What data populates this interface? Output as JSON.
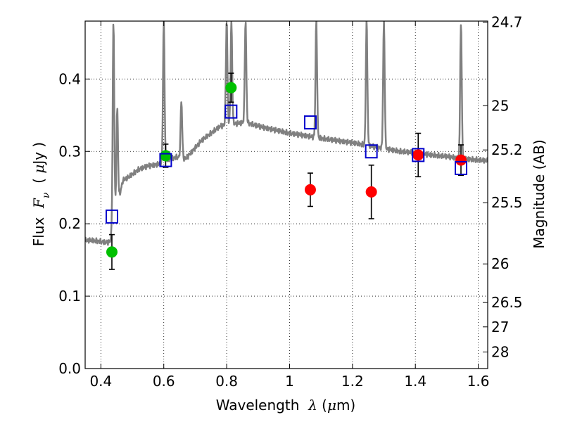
{
  "chart_data": {
    "type": "scatter",
    "title": "",
    "xlabel": {
      "prefix": "Wavelength  ",
      "symbol": "λ",
      "suffix": " (",
      "unit_symbol": "μ",
      "unit_rest": "m)"
    },
    "ylabel": {
      "prefix": "Flux  ",
      "symbol": "F",
      "subscript": "ν",
      "suffix": "  ( ",
      "unit_symbol": "μ",
      "unit_rest": "Jy )"
    },
    "y2label": "Magnitude (AB)",
    "xlim": [
      0.35,
      1.63
    ],
    "ylim": [
      0,
      0.48
    ],
    "grid": true,
    "x_ticks": [
      {
        "value": 0.4,
        "label": "0.4"
      },
      {
        "value": 0.6,
        "label": "0.6"
      },
      {
        "value": 0.8,
        "label": "0.8"
      },
      {
        "value": 1.0,
        "label": "1"
      },
      {
        "value": 1.2,
        "label": "1.2"
      },
      {
        "value": 1.4,
        "label": "1.4"
      },
      {
        "value": 1.6,
        "label": "1.6"
      }
    ],
    "y_ticks": [
      {
        "value": 0.0,
        "label": "0.0"
      },
      {
        "value": 0.1,
        "label": "0.1"
      },
      {
        "value": 0.2,
        "label": "0.2"
      },
      {
        "value": 0.3,
        "label": "0.3"
      },
      {
        "value": 0.4,
        "label": "0.4"
      }
    ],
    "y2_ticks": [
      {
        "value": 24.7,
        "label": "24.7"
      },
      {
        "value": 25.0,
        "label": "25"
      },
      {
        "value": 25.2,
        "label": "25.2"
      },
      {
        "value": 25.5,
        "label": "25.5"
      },
      {
        "value": 26.0,
        "label": "26"
      },
      {
        "value": 26.5,
        "label": "26.5"
      },
      {
        "value": 27.0,
        "label": "27"
      },
      {
        "value": 28.0,
        "label": "28"
      }
    ],
    "series": [
      {
        "marker": "circle",
        "color": "#00c000",
        "points": [
          {
            "x": 0.435,
            "y": 0.161,
            "err": 0.024
          },
          {
            "x": 0.606,
            "y": 0.294,
            "err": 0.016
          },
          {
            "x": 0.814,
            "y": 0.388,
            "err": 0.02
          }
        ]
      },
      {
        "marker": "circle",
        "color": "#ff0000",
        "points": [
          {
            "x": 1.066,
            "y": 0.247,
            "err": 0.023
          },
          {
            "x": 1.26,
            "y": 0.244,
            "err": 0.037
          },
          {
            "x": 1.409,
            "y": 0.295,
            "err": 0.03
          },
          {
            "x": 1.545,
            "y": 0.288,
            "err": 0.021
          }
        ]
      },
      {
        "marker": "square-open",
        "color": "#0000cc",
        "points": [
          {
            "x": 0.435,
            "y": 0.21
          },
          {
            "x": 0.606,
            "y": 0.288
          },
          {
            "x": 0.814,
            "y": 0.355
          },
          {
            "x": 1.066,
            "y": 0.34
          },
          {
            "x": 1.26,
            "y": 0.3
          },
          {
            "x": 1.409,
            "y": 0.295
          },
          {
            "x": 1.545,
            "y": 0.277
          }
        ]
      }
    ],
    "model_spectrum": {
      "color": "#808080",
      "continuum": [
        [
          0.35,
          0.177
        ],
        [
          0.37,
          0.177
        ],
        [
          0.39,
          0.176
        ],
        [
          0.405,
          0.175
        ],
        [
          0.42,
          0.174
        ],
        [
          0.43,
          0.176
        ],
        [
          0.44,
          0.2
        ],
        [
          0.45,
          0.225
        ],
        [
          0.46,
          0.24
        ],
        [
          0.47,
          0.26
        ],
        [
          0.49,
          0.265
        ],
        [
          0.52,
          0.275
        ],
        [
          0.55,
          0.28
        ],
        [
          0.58,
          0.282
        ],
        [
          0.61,
          0.288
        ],
        [
          0.64,
          0.292
        ],
        [
          0.67,
          0.29
        ],
        [
          0.7,
          0.305
        ],
        [
          0.72,
          0.315
        ],
        [
          0.75,
          0.325
        ],
        [
          0.78,
          0.335
        ],
        [
          0.82,
          0.338
        ],
        [
          0.86,
          0.34
        ],
        [
          0.9,
          0.335
        ],
        [
          0.95,
          0.33
        ],
        [
          1.0,
          0.325
        ],
        [
          1.05,
          0.322
        ],
        [
          1.1,
          0.318
        ],
        [
          1.15,
          0.315
        ],
        [
          1.2,
          0.312
        ],
        [
          1.25,
          0.308
        ],
        [
          1.3,
          0.304
        ],
        [
          1.35,
          0.3
        ],
        [
          1.4,
          0.298
        ],
        [
          1.45,
          0.295
        ],
        [
          1.5,
          0.293
        ],
        [
          1.55,
          0.29
        ],
        [
          1.6,
          0.288
        ],
        [
          1.63,
          0.287
        ]
      ],
      "emission_lines": [
        {
          "x": 0.44,
          "peak": 0.48
        },
        {
          "x": 0.452,
          "peak": 0.36
        },
        {
          "x": 0.6,
          "peak": 0.48
        },
        {
          "x": 0.656,
          "peak": 0.37
        },
        {
          "x": 0.8,
          "peak": 0.48
        },
        {
          "x": 0.815,
          "peak": 0.48
        },
        {
          "x": 0.86,
          "peak": 0.48
        },
        {
          "x": 1.085,
          "peak": 0.48
        },
        {
          "x": 1.245,
          "peak": 0.48
        },
        {
          "x": 1.3,
          "peak": 0.48
        },
        {
          "x": 1.545,
          "peak": 0.48
        }
      ]
    }
  }
}
